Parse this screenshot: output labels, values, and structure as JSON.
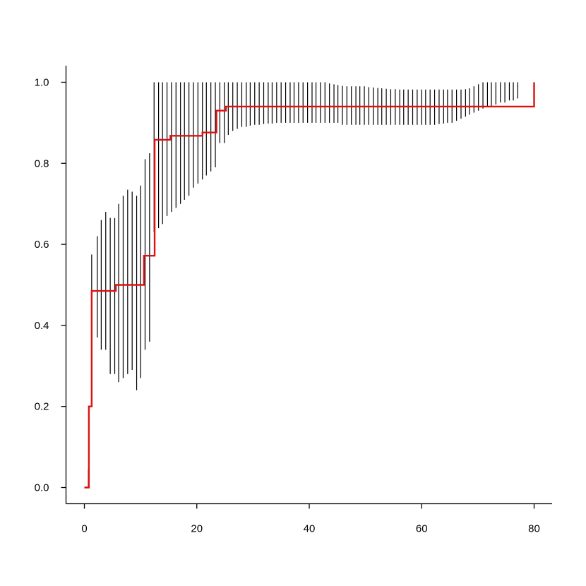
{
  "chart_data": {
    "type": "line",
    "title": "",
    "xlabel": "",
    "ylabel": "",
    "xlim": [
      0,
      80
    ],
    "ylim": [
      0,
      1
    ],
    "grid": false,
    "x_ticks": [
      0,
      20,
      40,
      60,
      80
    ],
    "y_ticks": [
      0.0,
      0.2,
      0.4,
      0.6,
      0.8,
      1.0
    ],
    "x_tick_labels": [
      "0",
      "20",
      "40",
      "60",
      "80"
    ],
    "y_tick_labels": [
      "0.0",
      "0.2",
      "0.4",
      "0.6",
      "0.8",
      "1.0"
    ],
    "colors": {
      "step": "#dd1111",
      "ci": "#000000",
      "axis": "#000000"
    },
    "step_series": {
      "x": [
        0,
        0.8,
        1.0,
        1.3,
        5.6,
        10.6,
        12.5,
        15.3,
        21.0,
        23.5,
        25.2,
        80.0
      ],
      "y": [
        0,
        0.2,
        0.2,
        0.485,
        0.5,
        0.572,
        0.858,
        0.868,
        0.876,
        0.93,
        0.94,
        1.0
      ]
    },
    "ci_series": {
      "x": [
        0.7,
        1.3,
        2.3,
        3.0,
        3.8,
        4.6,
        5.4,
        6.1,
        6.9,
        7.7,
        8.5,
        9.3,
        10.0,
        10.8,
        11.6,
        12.4,
        13.2,
        13.9,
        14.7,
        15.5,
        16.3,
        17.1,
        17.8,
        18.6,
        19.4,
        20.2,
        21.0,
        21.7,
        22.5,
        23.3,
        24.1,
        24.9,
        25.6,
        26.4,
        27.2,
        28.0,
        28.8,
        29.5,
        30.3,
        31.1,
        31.9,
        32.7,
        33.4,
        34.2,
        35.0,
        35.8,
        36.6,
        37.3,
        38.1,
        38.9,
        39.7,
        40.5,
        41.2,
        42.0,
        42.8,
        43.6,
        44.4,
        45.1,
        45.9,
        46.7,
        47.5,
        48.3,
        49.0,
        49.8,
        50.6,
        51.4,
        52.2,
        52.9,
        53.7,
        54.5,
        55.3,
        56.1,
        56.8,
        57.6,
        58.4,
        59.2,
        60.0,
        60.7,
        61.5,
        62.3,
        63.1,
        63.9,
        64.6,
        65.4,
        66.2,
        67.0,
        67.8,
        68.5,
        69.3,
        70.1,
        70.9,
        71.7,
        72.4,
        73.2,
        74.0,
        74.8,
        75.6,
        76.3,
        77.1
      ],
      "lower": [
        0,
        0.37,
        0.37,
        0.34,
        0.34,
        0.28,
        0.28,
        0.26,
        0.27,
        0.28,
        0.29,
        0.24,
        0.27,
        0.34,
        0.36,
        0.63,
        0.64,
        0.65,
        0.67,
        0.68,
        0.69,
        0.7,
        0.71,
        0.72,
        0.74,
        0.75,
        0.76,
        0.77,
        0.78,
        0.79,
        0.85,
        0.85,
        0.87,
        0.88,
        0.885,
        0.89,
        0.89,
        0.893,
        0.895,
        0.895,
        0.897,
        0.898,
        0.898,
        0.9,
        0.9,
        0.9,
        0.9,
        0.9,
        0.9,
        0.9,
        0.9,
        0.9,
        0.9,
        0.9,
        0.9,
        0.9,
        0.9,
        0.9,
        0.895,
        0.895,
        0.895,
        0.895,
        0.895,
        0.895,
        0.895,
        0.895,
        0.895,
        0.895,
        0.895,
        0.895,
        0.895,
        0.895,
        0.895,
        0.895,
        0.895,
        0.895,
        0.895,
        0.895,
        0.895,
        0.895,
        0.897,
        0.898,
        0.9,
        0.9,
        0.905,
        0.91,
        0.915,
        0.92,
        0.925,
        0.93,
        0.935,
        0.94,
        0.94,
        0.945,
        0.95,
        0.95,
        0.955,
        0.955,
        0.96
      ],
      "upper": [
        0.045,
        0.575,
        0.62,
        0.66,
        0.68,
        0.665,
        0.665,
        0.7,
        0.72,
        0.735,
        0.73,
        0.72,
        0.745,
        0.81,
        0.825,
        1.0,
        1.0,
        1.0,
        1.0,
        1.0,
        1.0,
        1.0,
        1.0,
        1.0,
        1.0,
        1.0,
        1.0,
        1.0,
        1.0,
        1.0,
        1.0,
        1.0,
        1.0,
        1.0,
        1.0,
        1.0,
        1.0,
        1.0,
        1.0,
        1.0,
        1.0,
        1.0,
        1.0,
        1.0,
        1.0,
        1.0,
        1.0,
        1.0,
        1.0,
        1.0,
        1.0,
        1.0,
        1.0,
        1.0,
        1.0,
        0.997,
        0.995,
        0.993,
        0.991,
        0.99,
        0.99,
        0.99,
        0.99,
        0.99,
        0.988,
        0.987,
        0.986,
        0.985,
        0.984,
        0.983,
        0.983,
        0.982,
        0.982,
        0.982,
        0.982,
        0.982,
        0.982,
        0.982,
        0.982,
        0.982,
        0.982,
        0.982,
        0.982,
        0.982,
        0.982,
        0.982,
        0.983,
        0.985,
        0.99,
        0.995,
        1.0,
        1.0,
        1.0,
        1.0,
        1.0,
        1.0,
        1.0,
        1.0,
        1.0
      ]
    }
  }
}
